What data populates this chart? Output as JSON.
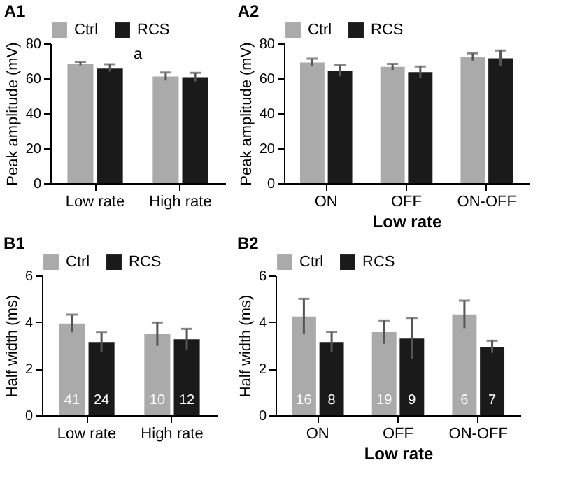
{
  "chart_data": [
    {
      "type": "bar",
      "title": "A1",
      "categories": [
        "Low rate",
        "High rate"
      ],
      "ylabel": "Peak amplitude (mV)",
      "ylim": [
        0,
        80
      ],
      "yticks": [
        0,
        20,
        40,
        60,
        80
      ],
      "legend": "top",
      "series": [
        {
          "name": "Ctrl",
          "color": "#aaaaaa",
          "values": [
            68.4,
            61.0
          ],
          "errors": [
            1.0,
            2.3
          ]
        },
        {
          "name": "RCS",
          "color": "#1a1a1a",
          "values": [
            65.9,
            60.6
          ],
          "errors": [
            2.1,
            2.5
          ]
        }
      ],
      "annotations": [
        "a"
      ]
    },
    {
      "type": "bar",
      "title": "A2",
      "categories": [
        "ON",
        "OFF",
        "ON-OFF"
      ],
      "xlabel": "Low rate",
      "ylabel": "Peak amplitude (mV)",
      "ylim": [
        0,
        80
      ],
      "yticks": [
        0,
        20,
        40,
        60,
        80
      ],
      "legend": "top",
      "series": [
        {
          "name": "Ctrl",
          "color": "#aaaaaa",
          "values": [
            69.0,
            66.5,
            72.2
          ],
          "errors": [
            2.2,
            1.7,
            2.1
          ]
        },
        {
          "name": "RCS",
          "color": "#1a1a1a",
          "values": [
            64.3,
            63.5,
            71.4
          ],
          "errors": [
            3.2,
            3.2,
            4.5
          ]
        }
      ]
    },
    {
      "type": "bar",
      "title": "B1",
      "categories": [
        "Low rate",
        "High rate"
      ],
      "ylabel": "Half width (ms)",
      "ylim": [
        0,
        6
      ],
      "yticks": [
        0,
        2,
        4,
        6
      ],
      "legend": "top",
      "series": [
        {
          "name": "Ctrl",
          "color": "#aaaaaa",
          "values": [
            3.94,
            3.48
          ],
          "errors": [
            0.38,
            0.5
          ]
        },
        {
          "name": "RCS",
          "color": "#1a1a1a",
          "values": [
            3.14,
            3.26
          ],
          "errors": [
            0.41,
            0.45
          ]
        }
      ],
      "annotations": [
        {
          "text": "41",
          "x": "Low rate",
          "y": 0.35
        },
        {
          "text": "24",
          "x": "Low rate",
          "y": 0.35
        },
        {
          "text": "10",
          "x": "High rate",
          "y": 0.35
        },
        {
          "text": "12",
          "x": "High rate",
          "y": 0.35
        }
      ]
    },
    {
      "type": "bar",
      "title": "B2",
      "categories": [
        "ON",
        "OFF",
        "ON-OFF"
      ],
      "xlabel": "Low rate",
      "ylabel": "Half width (ms)",
      "ylim": [
        0,
        6
      ],
      "yticks": [
        0,
        2,
        4,
        6
      ],
      "legend": "top",
      "series": [
        {
          "name": "Ctrl",
          "color": "#aaaaaa",
          "values": [
            4.24,
            3.57,
            4.33
          ],
          "errors": [
            0.76,
            0.5,
            0.59
          ]
        },
        {
          "name": "RCS",
          "color": "#1a1a1a",
          "values": [
            3.14,
            3.29,
            2.94
          ],
          "errors": [
            0.43,
            0.89,
            0.26
          ]
        }
      ],
      "annotations": [
        {
          "text": "16",
          "x": "ON",
          "y": 0.35
        },
        {
          "text": "8",
          "x": "ON",
          "y": 0.35
        },
        {
          "text": "19",
          "x": "OFF",
          "y": 0.35
        },
        {
          "text": "9",
          "x": "OFF",
          "y": 0.35
        },
        {
          "text": "6",
          "x": "ON-OFF",
          "y": 0.35
        },
        {
          "text": "7",
          "x": "ON-OFF",
          "y": 0.35
        }
      ]
    }
  ]
}
